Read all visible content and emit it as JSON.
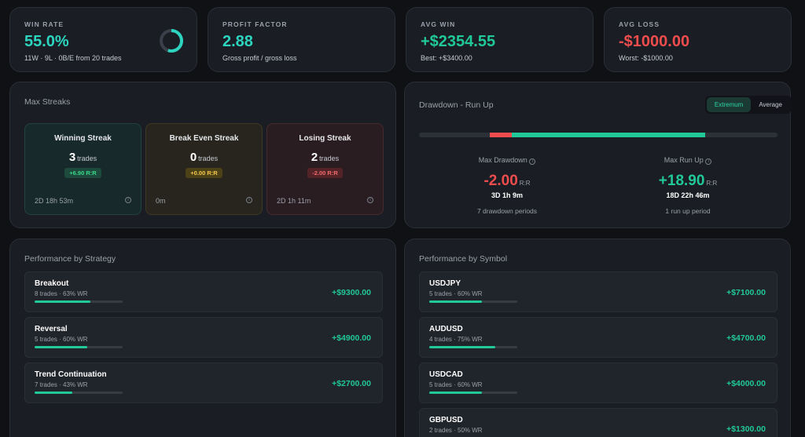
{
  "kpis": {
    "win_rate": {
      "label": "WIN RATE",
      "value": "55.0%",
      "sub": "11W · 9L · 0B/E from 20 trades",
      "fraction": 0.55
    },
    "profit_factor": {
      "label": "PROFIT FACTOR",
      "value": "2.88",
      "sub": "Gross profit / gross loss"
    },
    "avg_win": {
      "label": "AVG WIN",
      "value": "+$2354.55",
      "sub": "Best: +$3400.00"
    },
    "avg_loss": {
      "label": "AVG LOSS",
      "value": "-$1000.00",
      "sub": "Worst: -$1000.00"
    }
  },
  "streaks": {
    "title": "Max Streaks",
    "items": [
      {
        "title": "Winning Streak",
        "count": "3",
        "unit": "trades",
        "rr": "+6.90 R:R",
        "duration": "2D 18h 53m"
      },
      {
        "title": "Break Even Streak",
        "count": "0",
        "unit": "trades",
        "rr": "+0.00 R:R",
        "duration": "0m"
      },
      {
        "title": "Losing Streak",
        "count": "2",
        "unit": "trades",
        "rr": "-2.00 R:R",
        "duration": "2D 1h 11m"
      }
    ]
  },
  "drawdown": {
    "title": "Drawdown - Run Up",
    "toggle": [
      "Extremum",
      "Average"
    ],
    "max_drawdown": {
      "label": "Max Drawdown",
      "value": "-2.00",
      "unit": "R:R",
      "duration": "3D 1h 9m",
      "periods": "7 drawdown periods"
    },
    "max_runup": {
      "label": "Max Run Up",
      "value": "+18.90",
      "unit": "R:R",
      "duration": "18D 22h 46m",
      "periods": "1 run up period"
    }
  },
  "strategy": {
    "title": "Performance by Strategy",
    "rows": [
      {
        "name": "Breakout",
        "meta": "8 trades · 63% WR",
        "value": "+$9300.00",
        "fill": 0.63
      },
      {
        "name": "Reversal",
        "meta": "5 trades · 60% WR",
        "value": "+$4900.00",
        "fill": 0.6
      },
      {
        "name": "Trend Continuation",
        "meta": "7 trades · 43% WR",
        "value": "+$2700.00",
        "fill": 0.43
      }
    ]
  },
  "symbol": {
    "title": "Performance by Symbol",
    "rows": [
      {
        "name": "USDJPY",
        "meta": "5 trades · 60% WR",
        "value": "+$7100.00",
        "fill": 0.6
      },
      {
        "name": "AUDUSD",
        "meta": "4 trades · 75% WR",
        "value": "+$4700.00",
        "fill": 0.75
      },
      {
        "name": "USDCAD",
        "meta": "5 trades · 60% WR",
        "value": "+$4000.00",
        "fill": 0.6
      },
      {
        "name": "GBPUSD",
        "meta": "2 trades · 50% WR",
        "value": "+$1300.00",
        "fill": 0.5
      }
    ]
  },
  "colors": {
    "accent": "#20c997",
    "loss": "#ef4d4d"
  },
  "icons": {
    "info": "info-icon"
  }
}
